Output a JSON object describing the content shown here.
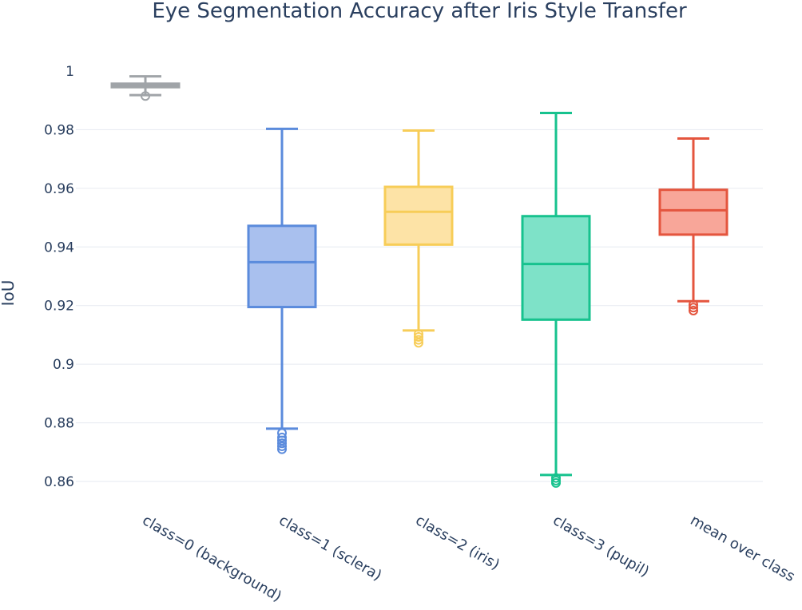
{
  "chart_data": {
    "type": "box",
    "title": "Eye Segmentation Accuracy after Iris Style Transfer",
    "xlabel": "",
    "ylabel": "IoU",
    "ylim": [
      0.85,
      1.003
    ],
    "y_ticks": [
      0.86,
      0.88,
      0.9,
      0.92,
      0.94,
      0.96,
      0.98,
      1
    ],
    "y_tick_labels": [
      "0.86",
      "0.88",
      "0.9",
      "0.92",
      "0.94",
      "0.96",
      "0.98",
      "1"
    ],
    "grid": true,
    "legend": "none",
    "categories": [
      "class=0 (background)",
      "class=1 (sclera)",
      "class=2 (iris)",
      "class=3 (pupil)",
      "mean over class"
    ],
    "series": [
      {
        "color": "#a0a4a8",
        "fill": "#b9bdc1",
        "whisker_low": 0.9918,
        "q1": 0.9945,
        "median": 0.995,
        "q3": 0.9957,
        "whisker_high": 0.9982,
        "outliers": [
          0.9915
        ]
      },
      {
        "color": "#5b8bdc",
        "fill": "#a9c0ee",
        "whisker_low": 0.878,
        "q1": 0.9195,
        "median": 0.9348,
        "q3": 0.9472,
        "whisker_high": 0.9803,
        "outliers": [
          0.8765,
          0.875,
          0.874,
          0.873,
          0.872,
          0.871
        ]
      },
      {
        "color": "#f7cd58",
        "fill": "#fde3a6",
        "whisker_low": 0.9115,
        "q1": 0.9408,
        "median": 0.952,
        "q3": 0.9605,
        "whisker_high": 0.9797,
        "outliers": [
          0.9103,
          0.9093,
          0.9083,
          0.9073
        ]
      },
      {
        "color": "#17c28e",
        "fill": "#7ee2c8",
        "whisker_low": 0.8622,
        "q1": 0.9152,
        "median": 0.9342,
        "q3": 0.9505,
        "whisker_high": 0.9857,
        "outliers": [
          0.8612,
          0.8603,
          0.8595
        ]
      },
      {
        "color": "#e4553e",
        "fill": "#f8a699",
        "whisker_low": 0.9215,
        "q1": 0.9442,
        "median": 0.9525,
        "q3": 0.9595,
        "whisker_high": 0.977,
        "outliers": [
          0.9203,
          0.9193,
          0.9183
        ]
      }
    ]
  }
}
